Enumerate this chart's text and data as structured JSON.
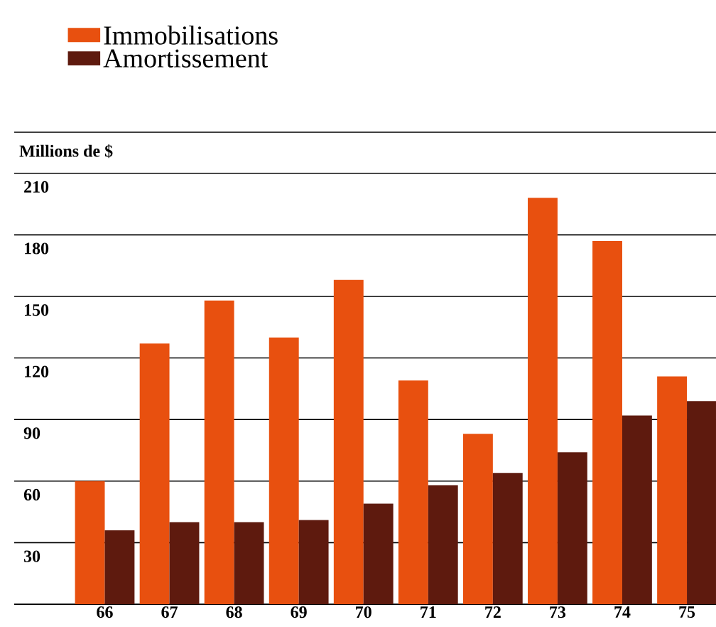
{
  "chart_data": {
    "type": "bar",
    "ylabel": "Millions de $",
    "categories": [
      "66",
      "67",
      "68",
      "69",
      "70",
      "71",
      "72",
      "73",
      "74",
      "75"
    ],
    "series": [
      {
        "name": "Immobilisations",
        "color": "#e8500f",
        "values": [
          60,
          127,
          148,
          130,
          158,
          109,
          83,
          198,
          177,
          111
        ]
      },
      {
        "name": "Amortissement",
        "color": "#5e1a0e",
        "values": [
          36,
          40,
          40,
          41,
          49,
          58,
          64,
          74,
          92,
          99
        ]
      }
    ],
    "ylim": [
      0,
      230
    ],
    "yticks": [
      {
        "value": 0,
        "label": null
      },
      30,
      60,
      90,
      120,
      150,
      180,
      210
    ],
    "grid": "y",
    "legend": "top left"
  }
}
